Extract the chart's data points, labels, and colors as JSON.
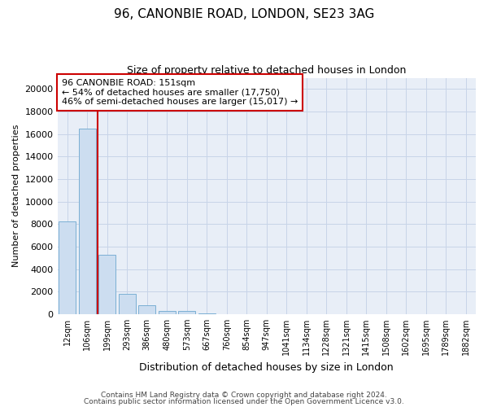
{
  "title1": "96, CANONBIE ROAD, LONDON, SE23 3AG",
  "title2": "Size of property relative to detached houses in London",
  "xlabel": "Distribution of detached houses by size in London",
  "ylabel": "Number of detached properties",
  "categories": [
    "12sqm",
    "106sqm",
    "199sqm",
    "293sqm",
    "386sqm",
    "480sqm",
    "573sqm",
    "667sqm",
    "760sqm",
    "854sqm",
    "947sqm",
    "1041sqm",
    "1134sqm",
    "1228sqm",
    "1321sqm",
    "1415sqm",
    "1508sqm",
    "1602sqm",
    "1695sqm",
    "1789sqm",
    "1882sqm"
  ],
  "bar_heights": [
    8200,
    16500,
    5300,
    1800,
    800,
    300,
    300,
    50,
    0,
    0,
    0,
    0,
    0,
    0,
    0,
    0,
    0,
    0,
    0,
    0,
    0
  ],
  "bar_color": "#ccddf0",
  "bar_edge_color": "#7bafd4",
  "annotation_title": "96 CANONBIE ROAD: 151sqm",
  "annotation_line1": "← 54% of detached houses are smaller (17,750)",
  "annotation_line2": "46% of semi-detached houses are larger (15,017) →",
  "vline_color": "#cc0000",
  "vline_x": 1.5,
  "ylim": [
    0,
    21000
  ],
  "yticks": [
    0,
    2000,
    4000,
    6000,
    8000,
    10000,
    12000,
    14000,
    16000,
    18000,
    20000
  ],
  "footer1": "Contains HM Land Registry data © Crown copyright and database right 2024.",
  "footer2": "Contains public sector information licensed under the Open Government Licence v3.0.",
  "bg_color": "#ffffff",
  "plot_bg_color": "#e8eef7",
  "grid_color": "#c8d4e8",
  "title1_fontsize": 11,
  "title2_fontsize": 9,
  "bar_width": 0.85
}
